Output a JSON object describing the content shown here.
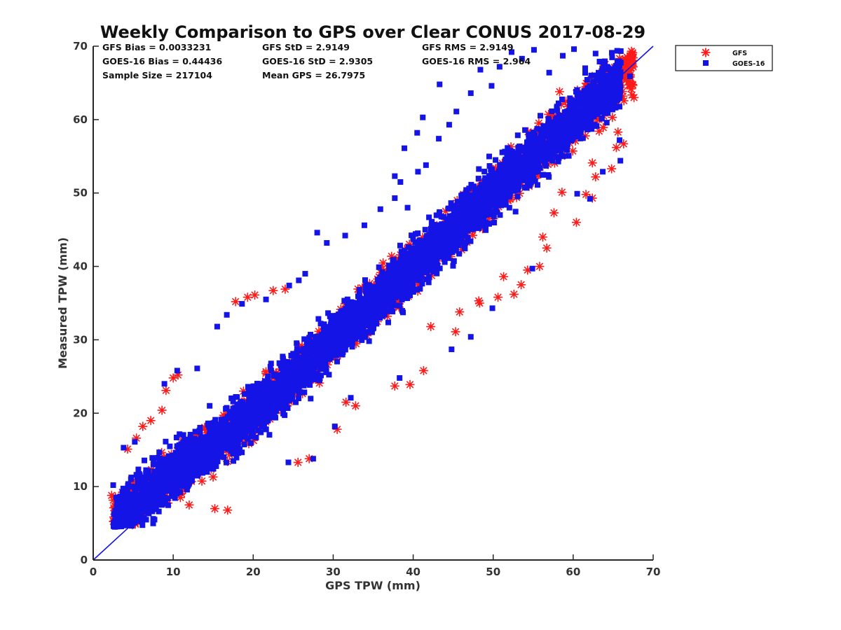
{
  "colors": {
    "gfs": "#ff1a1a",
    "goes16": "#1414e6",
    "axis": "#262626",
    "oneToOne": "#1414e6"
  },
  "stats": [
    [
      "GFS Bias = 0.0033231",
      "GFS StD = 2.9149",
      "GFS RMS = 2.9149"
    ],
    [
      "GOES-16 Bias = 0.44436",
      "GOES-16 StD = 2.9305",
      "GOES-16 RMS = 2.964"
    ],
    [
      "Sample Size = 217104",
      "Mean GPS = 26.7975",
      ""
    ]
  ],
  "chart_data": {
    "type": "scatter",
    "title": "Weekly Comparison to GPS over Clear CONUS 2017-08-29",
    "xlabel": "GPS TPW (mm)",
    "ylabel": "Measured TPW (mm)",
    "xlim": [
      0,
      70
    ],
    "ylim": [
      0,
      70
    ],
    "xticks": [
      0,
      10,
      20,
      30,
      40,
      50,
      60,
      70
    ],
    "yticks": [
      0,
      10,
      20,
      30,
      40,
      50,
      60,
      70
    ],
    "reference_line": {
      "x": [
        0,
        70
      ],
      "y": [
        0,
        70
      ]
    },
    "legend_position": "top-right, outside axes",
    "series": [
      {
        "name": "GFS",
        "marker": "asterisk",
        "bulk_band": {
          "x_range": [
            2.5,
            67.5
          ],
          "y_center_equals_x": true,
          "half_width_mm": 4.5,
          "count": 2600,
          "seed": 11
        },
        "values": [
          [
            2.3,
            8.8
          ],
          [
            3.5,
            7.2
          ],
          [
            4.2,
            5.5
          ],
          [
            4.9,
            4.8
          ],
          [
            5.6,
            5.1
          ],
          [
            6.4,
            6.1
          ],
          [
            4.3,
            15.1
          ],
          [
            5.4,
            16.6
          ],
          [
            6.2,
            18.2
          ],
          [
            7.2,
            19.0
          ],
          [
            8.6,
            20.4
          ],
          [
            9.1,
            23.1
          ],
          [
            10.0,
            24.8
          ],
          [
            10.6,
            25.2
          ],
          [
            12.0,
            7.5
          ],
          [
            16.8,
            6.8
          ],
          [
            15.2,
            7.0
          ],
          [
            17.8,
            35.2
          ],
          [
            19.3,
            35.8
          ],
          [
            20.2,
            36.1
          ],
          [
            22.5,
            36.7
          ],
          [
            24.0,
            36.9
          ],
          [
            25.6,
            13.3
          ],
          [
            27.0,
            13.8
          ],
          [
            30.5,
            17.8
          ],
          [
            31.6,
            21.5
          ],
          [
            32.8,
            21.0
          ],
          [
            37.7,
            23.7
          ],
          [
            39.6,
            23.9
          ],
          [
            41.3,
            25.8
          ],
          [
            42.2,
            31.8
          ],
          [
            45.3,
            31.1
          ],
          [
            45.8,
            33.8
          ],
          [
            48.3,
            35.0
          ],
          [
            48.2,
            35.3
          ],
          [
            50.6,
            35.8
          ],
          [
            51.3,
            38.6
          ],
          [
            52.6,
            36.2
          ],
          [
            53.5,
            37.5
          ],
          [
            54.3,
            39.5
          ],
          [
            55.8,
            40.0
          ],
          [
            56.2,
            44.0
          ],
          [
            56.7,
            42.5
          ],
          [
            57.6,
            47.3
          ],
          [
            58.6,
            50.1
          ],
          [
            60.4,
            46.0
          ],
          [
            61.6,
            49.8
          ],
          [
            62.4,
            49.3
          ],
          [
            62.8,
            52.2
          ],
          [
            62.4,
            54.1
          ],
          [
            64.8,
            53.3
          ],
          [
            65.4,
            56.2
          ],
          [
            65.6,
            58.3
          ],
          [
            64.9,
            60.3
          ],
          [
            65.3,
            61.9
          ],
          [
            63.8,
            62.7
          ],
          [
            63.6,
            66.5
          ],
          [
            64.6,
            65.2
          ],
          [
            66.3,
            56.7
          ],
          [
            67.6,
            63.0
          ],
          [
            61.9,
            65.3
          ],
          [
            58.3,
            63.8
          ]
        ]
      },
      {
        "name": "GOES-16",
        "marker": "square",
        "bulk_band": {
          "x_range": [
            2.5,
            66.0
          ],
          "y_center_equals_x": true,
          "half_width_mm": 5.2,
          "count": 4800,
          "seed": 7
        },
        "values": [
          [
            2.5,
            10.2
          ],
          [
            3.8,
            15.3
          ],
          [
            5.2,
            16.1
          ],
          [
            8.9,
            24.0
          ],
          [
            10.5,
            25.8
          ],
          [
            13.0,
            26.1
          ],
          [
            15.5,
            31.8
          ],
          [
            16.7,
            33.4
          ],
          [
            18.6,
            34.9
          ],
          [
            21.6,
            35.5
          ],
          [
            24.5,
            37.4
          ],
          [
            25.7,
            38.1
          ],
          [
            26.5,
            39.0
          ],
          [
            28.0,
            44.6
          ],
          [
            29.2,
            43.2
          ],
          [
            31.5,
            44.2
          ],
          [
            33.9,
            45.6
          ],
          [
            35.9,
            47.8
          ],
          [
            37.7,
            49.3
          ],
          [
            38.4,
            51.5
          ],
          [
            39.3,
            48.0
          ],
          [
            40.6,
            52.9
          ],
          [
            41.6,
            53.8
          ],
          [
            43.2,
            57.4
          ],
          [
            44.5,
            59.3
          ],
          [
            45.4,
            61.1
          ],
          [
            47.2,
            63.6
          ],
          [
            48.4,
            66.8
          ],
          [
            49.8,
            64.6
          ],
          [
            50.8,
            67.2
          ],
          [
            52.3,
            69.2
          ],
          [
            53.6,
            68.3
          ],
          [
            55.1,
            69.5
          ],
          [
            57.0,
            66.4
          ],
          [
            58.7,
            68.7
          ],
          [
            60.1,
            69.6
          ],
          [
            61.5,
            67.0
          ],
          [
            62.8,
            69.0
          ],
          [
            63.3,
            67.9
          ],
          [
            65.4,
            64.4
          ],
          [
            65.8,
            57.2
          ],
          [
            65.9,
            54.4
          ],
          [
            67.1,
            65.9
          ],
          [
            63.7,
            52.9
          ],
          [
            62.1,
            49.2
          ],
          [
            60.5,
            49.9
          ],
          [
            41.2,
            60.3
          ],
          [
            40.5,
            58.2
          ],
          [
            43.3,
            64.8
          ],
          [
            38.9,
            56.1
          ],
          [
            37.7,
            52.3
          ],
          [
            24.4,
            13.3
          ],
          [
            27.5,
            13.8
          ],
          [
            30.2,
            18.2
          ],
          [
            32.2,
            22.1
          ],
          [
            38.3,
            24.8
          ],
          [
            44.8,
            28.7
          ],
          [
            47.2,
            30.4
          ],
          [
            49.9,
            34.3
          ],
          [
            54.9,
            39.7
          ]
        ]
      }
    ]
  }
}
